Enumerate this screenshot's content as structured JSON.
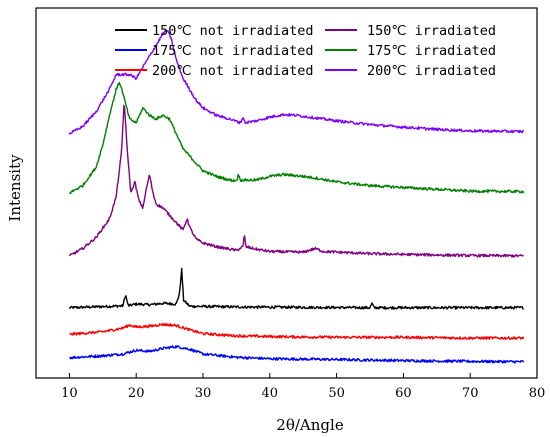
{
  "chart_data": {
    "type": "line",
    "xlabel": "2θ/Angle",
    "ylabel": "Intensity",
    "xlim": [
      5,
      80
    ],
    "xticks": [
      10,
      20,
      30,
      40,
      50,
      60,
      70,
      80
    ],
    "x_range": [
      10,
      78
    ],
    "grid": false,
    "legend_placement": "top",
    "series": [
      {
        "name": "150℃ not irradiated",
        "color": "#000000",
        "offset": 0.19,
        "points": [
          [
            10,
            0
          ],
          [
            18,
            0.005
          ],
          [
            18.4,
            0.035
          ],
          [
            18.8,
            0.005
          ],
          [
            20,
            0.01
          ],
          [
            22,
            0.008
          ],
          [
            24,
            0.012
          ],
          [
            26,
            0.01
          ],
          [
            26.5,
            0.04
          ],
          [
            26.8,
            0.105
          ],
          [
            27.1,
            0.02
          ],
          [
            28,
            0.004
          ],
          [
            35,
            0.002
          ],
          [
            45,
            0.001
          ],
          [
            55,
            0
          ],
          [
            55.3,
            0.012
          ],
          [
            55.6,
            0
          ],
          [
            65,
            0
          ],
          [
            78,
            0
          ]
        ]
      },
      {
        "name": "175℃ not irradiated",
        "color": "#0000ff",
        "offset": 0.05,
        "points": [
          [
            10,
            0.005
          ],
          [
            15,
            0.01
          ],
          [
            18,
            0.015
          ],
          [
            20,
            0.025
          ],
          [
            22,
            0.022
          ],
          [
            24,
            0.03
          ],
          [
            26,
            0.035
          ],
          [
            28,
            0.028
          ],
          [
            30,
            0.015
          ],
          [
            35,
            0.006
          ],
          [
            40,
            0.002
          ],
          [
            50,
            0
          ],
          [
            60,
            -0.003
          ],
          [
            70,
            -0.005
          ],
          [
            78,
            -0.006
          ]
        ]
      },
      {
        "name": "200℃ not irradiated",
        "color": "#ff0000",
        "offset": 0.11,
        "points": [
          [
            10,
            0.008
          ],
          [
            15,
            0.015
          ],
          [
            18,
            0.025
          ],
          [
            19,
            0.033
          ],
          [
            20,
            0.028
          ],
          [
            22,
            0.03
          ],
          [
            24,
            0.035
          ],
          [
            26,
            0.032
          ],
          [
            28,
            0.02
          ],
          [
            30,
            0.01
          ],
          [
            35,
            0.004
          ],
          [
            40,
            0.002
          ],
          [
            50,
            0
          ],
          [
            60,
            0
          ],
          [
            70,
            -0.002
          ],
          [
            78,
            -0.002
          ]
        ]
      },
      {
        "name": "150℃ irradiated",
        "color": "#800080",
        "offset": 0.33,
        "points": [
          [
            10,
            0
          ],
          [
            12,
            0.02
          ],
          [
            14,
            0.05
          ],
          [
            16,
            0.1
          ],
          [
            17,
            0.16
          ],
          [
            17.8,
            0.28
          ],
          [
            18.2,
            0.42
          ],
          [
            18.6,
            0.3
          ],
          [
            19.2,
            0.17
          ],
          [
            19.8,
            0.2
          ],
          [
            20.4,
            0.15
          ],
          [
            21,
            0.13
          ],
          [
            21.5,
            0.18
          ],
          [
            22,
            0.22
          ],
          [
            22.5,
            0.17
          ],
          [
            23,
            0.14
          ],
          [
            24,
            0.13
          ],
          [
            25,
            0.11
          ],
          [
            26,
            0.09
          ],
          [
            27,
            0.07
          ],
          [
            27.6,
            0.1
          ],
          [
            28.2,
            0.07
          ],
          [
            29,
            0.045
          ],
          [
            30,
            0.035
          ],
          [
            32,
            0.025
          ],
          [
            35,
            0.015
          ],
          [
            36,
            0.025
          ],
          [
            36.2,
            0.06
          ],
          [
            36.4,
            0.025
          ],
          [
            38,
            0.018
          ],
          [
            40,
            0.012
          ],
          [
            45,
            0.01
          ],
          [
            46.8,
            0.02
          ],
          [
            48,
            0.012
          ],
          [
            55,
            0.006
          ],
          [
            60,
            0.004
          ],
          [
            70,
            0.001
          ],
          [
            78,
            0
          ]
        ]
      },
      {
        "name": "175℃ irradiated",
        "color": "#008000",
        "offset": 0.5,
        "points": [
          [
            10,
            0
          ],
          [
            12,
            0.02
          ],
          [
            14,
            0.07
          ],
          [
            15,
            0.13
          ],
          [
            16,
            0.21
          ],
          [
            17,
            0.28
          ],
          [
            17.5,
            0.3
          ],
          [
            18,
            0.27
          ],
          [
            19,
            0.2
          ],
          [
            20,
            0.19
          ],
          [
            21,
            0.23
          ],
          [
            22,
            0.21
          ],
          [
            23,
            0.2
          ],
          [
            24,
            0.21
          ],
          [
            25,
            0.2
          ],
          [
            26,
            0.16
          ],
          [
            27,
            0.12
          ],
          [
            28,
            0.1
          ],
          [
            29,
            0.08
          ],
          [
            30,
            0.06
          ],
          [
            32,
            0.045
          ],
          [
            34,
            0.035
          ],
          [
            35,
            0.033
          ],
          [
            35.3,
            0.05
          ],
          [
            35.6,
            0.035
          ],
          [
            38,
            0.035
          ],
          [
            40,
            0.045
          ],
          [
            42,
            0.05
          ],
          [
            45,
            0.045
          ],
          [
            47,
            0.04
          ],
          [
            50,
            0.03
          ],
          [
            55,
            0.02
          ],
          [
            60,
            0.015
          ],
          [
            65,
            0.01
          ],
          [
            70,
            0.005
          ],
          [
            78,
            0.004
          ]
        ]
      },
      {
        "name": "200℃ irradiated",
        "color": "#8000ff",
        "offset": 0.66,
        "points": [
          [
            10,
            0
          ],
          [
            12,
            0.02
          ],
          [
            14,
            0.06
          ],
          [
            16,
            0.12
          ],
          [
            17,
            0.16
          ],
          [
            18,
            0.16
          ],
          [
            19,
            0.16
          ],
          [
            20,
            0.15
          ],
          [
            21,
            0.18
          ],
          [
            22,
            0.21
          ],
          [
            23,
            0.24
          ],
          [
            24,
            0.27
          ],
          [
            24.6,
            0.28
          ],
          [
            25.2,
            0.26
          ],
          [
            26,
            0.2
          ],
          [
            27,
            0.15
          ],
          [
            28,
            0.12
          ],
          [
            29,
            0.09
          ],
          [
            30,
            0.07
          ],
          [
            32,
            0.05
          ],
          [
            34,
            0.04
          ],
          [
            35.6,
            0.03
          ],
          [
            36,
            0.045
          ],
          [
            36.3,
            0.03
          ],
          [
            38,
            0.035
          ],
          [
            40,
            0.045
          ],
          [
            42,
            0.052
          ],
          [
            44,
            0.05
          ],
          [
            46,
            0.045
          ],
          [
            50,
            0.035
          ],
          [
            55,
            0.025
          ],
          [
            60,
            0.018
          ],
          [
            65,
            0.012
          ],
          [
            70,
            0.008
          ],
          [
            78,
            0.006
          ]
        ]
      }
    ]
  }
}
